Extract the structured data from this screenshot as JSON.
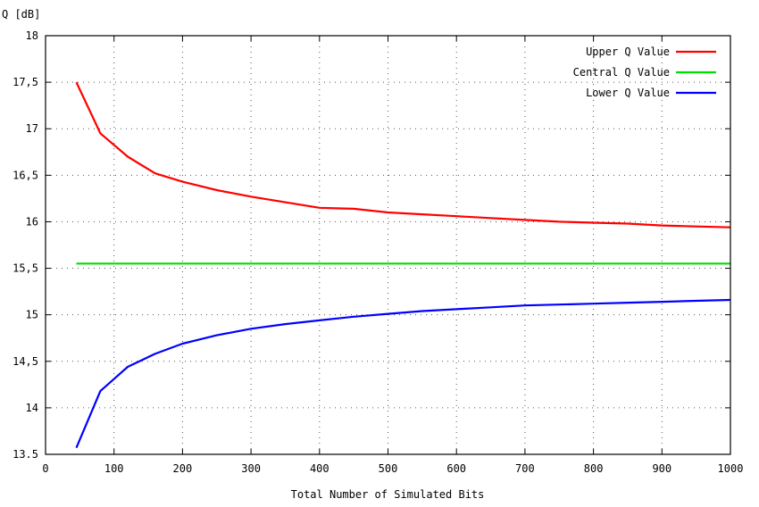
{
  "chart_data": {
    "type": "line",
    "ylabel": "Q [dB]",
    "xlabel": "Total Number of Simulated Bits",
    "xlim": [
      0,
      1000
    ],
    "ylim": [
      13.5,
      18
    ],
    "xticks": [
      0,
      100,
      200,
      300,
      400,
      500,
      600,
      700,
      800,
      900,
      1000
    ],
    "xtick_labels": [
      "0",
      "100",
      "200",
      "300",
      "400",
      "500",
      "600",
      "700",
      "800",
      "900",
      "1000"
    ],
    "yticks": [
      13.5,
      14,
      14.5,
      15,
      15.5,
      16,
      16.5,
      17,
      17.5,
      18
    ],
    "ytick_labels": [
      "13.5",
      "14",
      "14,5",
      "15",
      "15,5",
      "16",
      "16,5",
      "17",
      "17,5",
      "18"
    ],
    "grid": true,
    "legend_position": "top-right",
    "series": [
      {
        "name": "Upper Q Value",
        "color": "#ff0000",
        "x": [
          45,
          80,
          120,
          160,
          200,
          250,
          300,
          350,
          400,
          450,
          500,
          550,
          600,
          650,
          700,
          750,
          800,
          850,
          900,
          950,
          1000
        ],
        "y": [
          17.5,
          16.95,
          16.7,
          16.52,
          16.43,
          16.34,
          16.27,
          16.21,
          16.15,
          16.14,
          16.1,
          16.08,
          16.06,
          16.04,
          16.02,
          16.0,
          15.99,
          15.98,
          15.96,
          15.95,
          15.94
        ]
      },
      {
        "name": "Central Q Value",
        "color": "#00dd00",
        "x": [
          45,
          1000
        ],
        "y": [
          15.55,
          15.55
        ]
      },
      {
        "name": "Lower Q Value",
        "color": "#0000ff",
        "x": [
          45,
          80,
          120,
          160,
          200,
          250,
          300,
          350,
          400,
          450,
          500,
          550,
          600,
          650,
          700,
          750,
          800,
          850,
          900,
          950,
          1000
        ],
        "y": [
          13.57,
          14.18,
          14.44,
          14.58,
          14.69,
          14.78,
          14.85,
          14.9,
          14.94,
          14.98,
          15.01,
          15.04,
          15.06,
          15.08,
          15.1,
          15.11,
          15.12,
          15.13,
          15.14,
          15.15,
          15.16
        ]
      }
    ]
  }
}
